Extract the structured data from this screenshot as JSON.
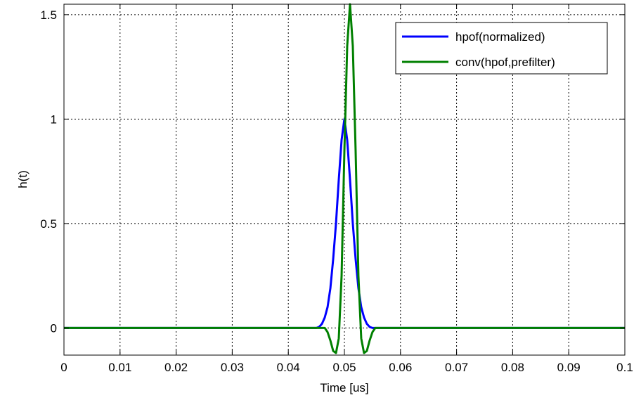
{
  "chart_data": {
    "type": "line",
    "xlabel": "Time [us]",
    "ylabel": "h(t)",
    "xlim": [
      0,
      0.1
    ],
    "ylim": [
      -0.13,
      1.55
    ],
    "grid": true,
    "grid_style": "dotted",
    "legend_position": "top-right",
    "x_ticks": [
      0,
      0.01,
      0.02,
      0.03,
      0.04,
      0.05,
      0.06,
      0.07,
      0.08,
      0.09,
      0.1
    ],
    "x_tick_labels": [
      "0",
      "0.01",
      "0.02",
      "0.03",
      "0.04",
      "0.05",
      "0.06",
      "0.07",
      "0.08",
      "0.09",
      "0.1"
    ],
    "y_ticks": [
      0,
      0.5,
      1,
      1.5
    ],
    "y_tick_labels": [
      "0",
      "0.5",
      "1",
      "1.5"
    ],
    "series": [
      {
        "name": "hpof(normalized)",
        "color": "#0000ff",
        "points": [
          [
            0,
            0
          ],
          [
            0.045,
            0
          ],
          [
            0.0455,
            0.005
          ],
          [
            0.046,
            0.02
          ],
          [
            0.0465,
            0.05
          ],
          [
            0.047,
            0.1
          ],
          [
            0.0475,
            0.19
          ],
          [
            0.048,
            0.33
          ],
          [
            0.0485,
            0.5
          ],
          [
            0.049,
            0.71
          ],
          [
            0.0495,
            0.9
          ],
          [
            0.05,
            1.0
          ],
          [
            0.0505,
            0.9
          ],
          [
            0.051,
            0.71
          ],
          [
            0.0515,
            0.5
          ],
          [
            0.052,
            0.33
          ],
          [
            0.0525,
            0.19
          ],
          [
            0.053,
            0.1
          ],
          [
            0.0535,
            0.05
          ],
          [
            0.054,
            0.02
          ],
          [
            0.0545,
            0.005
          ],
          [
            0.055,
            0
          ],
          [
            0.1,
            0
          ]
        ]
      },
      {
        "name": "conv(hpof,prefilter)",
        "color": "#008000",
        "points": [
          [
            0,
            0
          ],
          [
            0.0465,
            0
          ],
          [
            0.047,
            -0.02
          ],
          [
            0.0475,
            -0.06
          ],
          [
            0.048,
            -0.11
          ],
          [
            0.0485,
            -0.12
          ],
          [
            0.049,
            -0.05
          ],
          [
            0.0495,
            0.25
          ],
          [
            0.05,
            0.85
          ],
          [
            0.0505,
            1.35
          ],
          [
            0.051,
            1.55
          ],
          [
            0.0515,
            1.35
          ],
          [
            0.052,
            0.85
          ],
          [
            0.0525,
            0.25
          ],
          [
            0.053,
            -0.05
          ],
          [
            0.0535,
            -0.12
          ],
          [
            0.054,
            -0.11
          ],
          [
            0.0545,
            -0.06
          ],
          [
            0.055,
            -0.02
          ],
          [
            0.0555,
            0
          ],
          [
            0.1,
            0
          ]
        ]
      }
    ]
  }
}
